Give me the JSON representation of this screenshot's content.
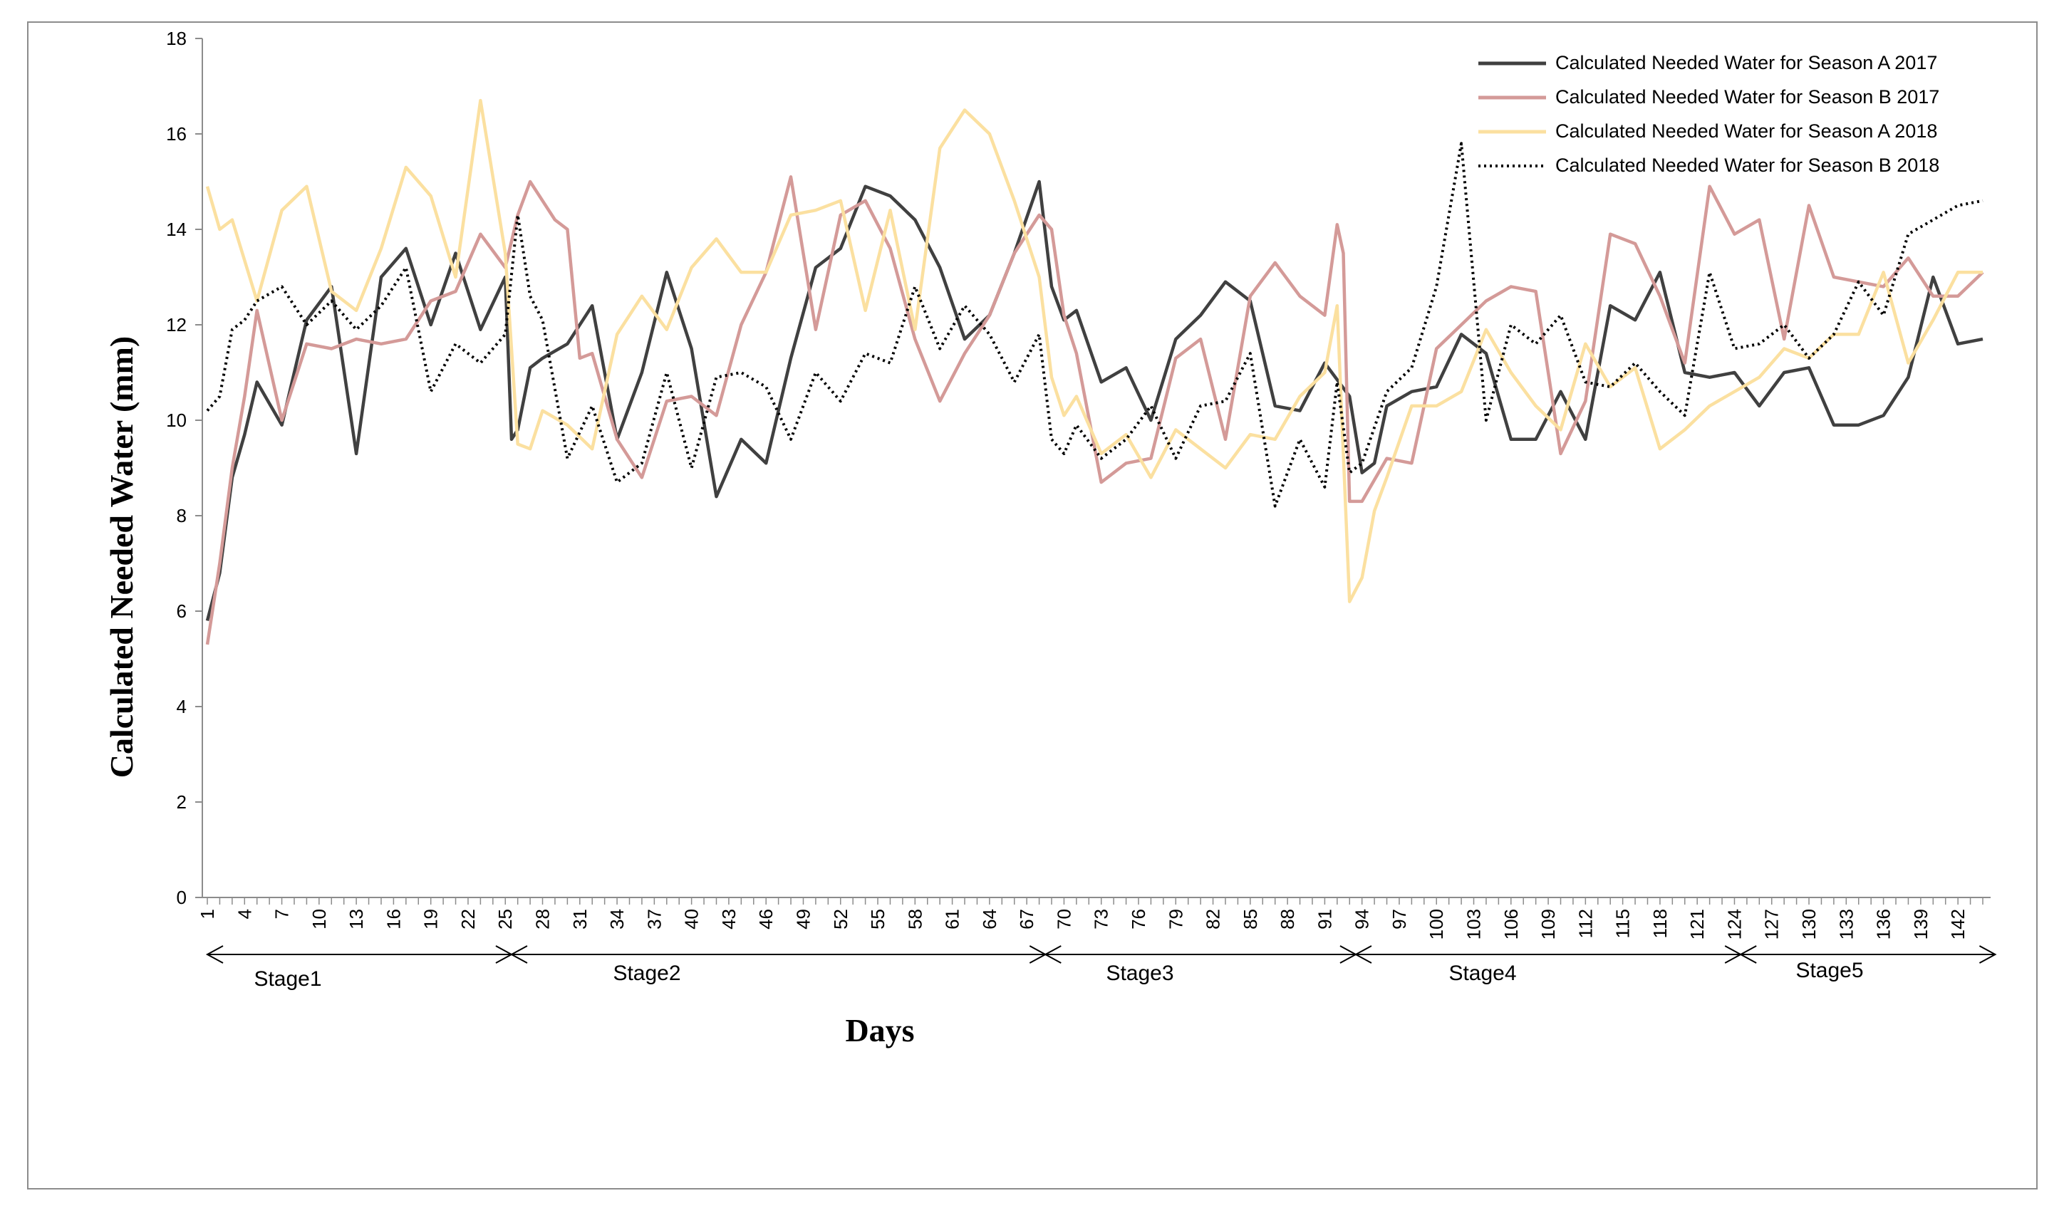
{
  "chart_data": {
    "type": "line",
    "title": "",
    "xlabel": "Days",
    "ylabel": "Calculated Needed Water (mm)",
    "ylim": [
      0,
      18
    ],
    "yticks": [
      "0",
      "2",
      "4",
      "6",
      "8",
      "10",
      "12",
      "14",
      "16",
      "18"
    ],
    "xlim": [
      1,
      144
    ],
    "xtick_labels": [
      "1",
      "4",
      "7",
      "10",
      "13",
      "16",
      "19",
      "22",
      "25",
      "28",
      "31",
      "34",
      "37",
      "40",
      "43",
      "46",
      "49",
      "52",
      "55",
      "58",
      "61",
      "64",
      "67",
      "70",
      "73",
      "76",
      "79",
      "82",
      "85",
      "88",
      "91",
      "94",
      "97",
      "100",
      "103",
      "106",
      "109",
      "112",
      "115",
      "118",
      "121",
      "124",
      "127",
      "130",
      "133",
      "136",
      "139",
      "142"
    ],
    "grid": false,
    "legend_position": "top-right",
    "series": [
      {
        "name": "Calculated  Needed Water for Season A 2017",
        "color": "#404040",
        "style": "solid",
        "x": [
          1,
          2,
          3,
          4,
          5,
          7,
          9,
          11,
          13,
          15,
          17,
          19,
          21,
          23,
          25,
          25.5,
          26,
          27,
          28,
          30,
          32,
          34,
          36,
          38,
          40,
          42,
          44,
          46,
          48,
          50,
          52,
          54,
          56,
          58,
          60,
          62,
          64,
          66,
          68,
          69,
          70,
          71,
          73,
          75,
          77,
          79,
          81,
          83,
          85,
          87,
          89,
          91,
          93,
          94,
          95,
          96,
          98,
          100,
          102,
          104,
          106,
          108,
          110,
          112,
          114,
          116,
          118,
          120,
          122,
          124,
          126,
          128,
          130,
          132,
          134,
          136,
          138,
          140,
          142,
          144
        ],
        "values": [
          5.8,
          6.8,
          8.8,
          9.7,
          10.8,
          9.9,
          12.1,
          12.8,
          9.3,
          13.0,
          13.6,
          12.0,
          13.5,
          11.9,
          13.0,
          9.6,
          9.8,
          11.1,
          11.3,
          11.6,
          12.4,
          9.6,
          11.0,
          13.1,
          11.5,
          8.4,
          9.6,
          9.1,
          11.3,
          13.2,
          13.6,
          14.9,
          14.7,
          14.2,
          13.2,
          11.7,
          12.2,
          13.5,
          15.0,
          12.8,
          12.1,
          12.3,
          10.8,
          11.1,
          10.0,
          11.7,
          12.2,
          12.9,
          12.5,
          10.3,
          10.2,
          11.2,
          10.5,
          8.9,
          9.1,
          10.3,
          10.6,
          10.7,
          11.8,
          11.4,
          9.6,
          9.6,
          10.6,
          9.6,
          12.4,
          12.1,
          13.1,
          11.0,
          10.9,
          11.0,
          10.3,
          11.0,
          11.1,
          9.9,
          9.9,
          10.1,
          10.9,
          13.0,
          11.6,
          11.7
        ]
      },
      {
        "name": "Calculated  Needed Water for  Season B 2017",
        "color": "#d49a98",
        "style": "solid",
        "x": [
          1,
          2,
          3,
          4,
          5,
          7,
          9,
          11,
          13,
          15,
          17,
          19,
          21,
          23,
          25,
          26,
          27,
          29,
          30,
          31,
          32,
          34,
          36,
          38,
          40,
          42,
          44,
          46,
          48,
          50,
          52,
          54,
          56,
          58,
          60,
          62,
          64,
          66,
          68,
          69,
          70,
          71,
          73,
          75,
          77,
          79,
          81,
          83,
          85,
          87,
          89,
          91,
          92,
          92.5,
          93,
          94,
          96,
          98,
          100,
          102,
          104,
          106,
          108,
          110,
          112,
          114,
          116,
          118,
          120,
          122,
          124,
          126,
          128,
          130,
          132,
          134,
          136,
          138,
          140,
          142,
          144
        ],
        "values": [
          5.3,
          7.0,
          9.0,
          10.5,
          12.3,
          10.0,
          11.6,
          11.5,
          11.7,
          11.6,
          11.7,
          12.5,
          12.7,
          13.9,
          13.2,
          14.3,
          15.0,
          14.2,
          14.0,
          11.3,
          11.4,
          9.6,
          8.8,
          10.4,
          10.5,
          10.1,
          12.0,
          13.1,
          15.1,
          11.9,
          14.3,
          14.6,
          13.6,
          11.7,
          10.4,
          11.4,
          12.2,
          13.5,
          14.3,
          14.0,
          12.2,
          11.4,
          8.7,
          9.1,
          9.2,
          11.3,
          11.7,
          9.6,
          12.6,
          13.3,
          12.6,
          12.2,
          14.1,
          13.5,
          8.3,
          8.3,
          9.2,
          9.1,
          11.5,
          12.0,
          12.5,
          12.8,
          12.7,
          9.3,
          10.4,
          13.9,
          13.7,
          12.6,
          11.2,
          14.9,
          13.9,
          14.2,
          11.7,
          14.5,
          13.0,
          12.9,
          12.8,
          13.4,
          12.6,
          12.6,
          13.1
        ]
      },
      {
        "name": "Calculated  Needed Water for Season A 2018",
        "color": "#fbe0a0",
        "style": "solid",
        "x": [
          1,
          2,
          3,
          5,
          7,
          9,
          11,
          13,
          15,
          17,
          19,
          21,
          23,
          25,
          26,
          27,
          28,
          30,
          32,
          34,
          36,
          38,
          40,
          42,
          44,
          46,
          48,
          50,
          52,
          54,
          56,
          58,
          60,
          62,
          64,
          66,
          68,
          69,
          70,
          71,
          73,
          75,
          77,
          79,
          81,
          83,
          85,
          87,
          89,
          91,
          92,
          93,
          94,
          95,
          96,
          98,
          100,
          102,
          104,
          106,
          108,
          110,
          112,
          114,
          116,
          118,
          120,
          122,
          124,
          126,
          128,
          130,
          132,
          134,
          136,
          138,
          140,
          142,
          144
        ],
        "values": [
          14.9,
          14.0,
          14.2,
          12.5,
          14.4,
          14.9,
          12.7,
          12.3,
          13.6,
          15.3,
          14.7,
          13.0,
          16.7,
          13.5,
          9.5,
          9.4,
          10.2,
          9.9,
          9.4,
          11.8,
          12.6,
          11.9,
          13.2,
          13.8,
          13.1,
          13.1,
          14.3,
          14.4,
          14.6,
          12.3,
          14.4,
          11.9,
          15.7,
          16.5,
          16.0,
          14.6,
          13.0,
          10.9,
          10.1,
          10.5,
          9.3,
          9.7,
          8.8,
          9.8,
          9.4,
          9.0,
          9.7,
          9.6,
          10.5,
          11.0,
          12.4,
          6.2,
          6.7,
          8.1,
          8.8,
          10.3,
          10.3,
          10.6,
          11.9,
          11.0,
          10.3,
          9.8,
          11.6,
          10.7,
          11.1,
          9.4,
          9.8,
          10.3,
          10.6,
          10.9,
          11.5,
          11.3,
          11.8,
          11.8,
          13.1,
          11.2,
          12.1,
          13.1,
          13.1
        ]
      },
      {
        "name": "Calculated  Needed Water for Season B 2018",
        "color": "#000000",
        "style": "dotted",
        "x": [
          1,
          2,
          3,
          4,
          5,
          7,
          9,
          11,
          13,
          15,
          17,
          19,
          21,
          23,
          25,
          26,
          27,
          28,
          30,
          32,
          34,
          36,
          38,
          40,
          42,
          44,
          46,
          48,
          50,
          52,
          54,
          56,
          58,
          60,
          62,
          64,
          66,
          68,
          69,
          70,
          71,
          73,
          75,
          77,
          79,
          81,
          83,
          85,
          87,
          89,
          91,
          92,
          93,
          94,
          96,
          98,
          100,
          102,
          104,
          106,
          108,
          110,
          112,
          114,
          116,
          118,
          120,
          122,
          124,
          126,
          128,
          130,
          132,
          134,
          136,
          138,
          140,
          142,
          144
        ],
        "values": [
          10.2,
          10.5,
          11.9,
          12.1,
          12.5,
          12.8,
          12.0,
          12.5,
          11.9,
          12.4,
          13.2,
          10.6,
          11.6,
          11.2,
          11.8,
          14.3,
          12.6,
          12.1,
          9.2,
          10.3,
          8.7,
          9.1,
          11.0,
          9.0,
          10.9,
          11.0,
          10.7,
          9.6,
          11.0,
          10.4,
          11.4,
          11.2,
          12.8,
          11.5,
          12.4,
          11.8,
          10.8,
          11.8,
          9.6,
          9.3,
          9.9,
          9.2,
          9.6,
          10.3,
          9.2,
          10.3,
          10.4,
          11.4,
          8.2,
          9.6,
          8.6,
          10.8,
          8.9,
          9.1,
          10.6,
          11.1,
          12.8,
          15.8,
          10.0,
          12.0,
          11.6,
          12.2,
          10.8,
          10.7,
          11.2,
          10.6,
          10.1,
          13.1,
          11.5,
          11.6,
          12.0,
          11.3,
          11.8,
          12.9,
          12.2,
          13.9,
          14.2,
          14.5,
          14.6
        ]
      }
    ],
    "stages": [
      {
        "label": "Stage1",
        "from": 1,
        "to": 25.5
      },
      {
        "label": "Stage2",
        "from": 25.5,
        "to": 68.5
      },
      {
        "label": "Stage3",
        "from": 68.5,
        "to": 93.5
      },
      {
        "label": "Stage4",
        "from": 93.5,
        "to": 124.5
      },
      {
        "label": "Stage5",
        "from": 124.5,
        "to": 145
      }
    ]
  }
}
